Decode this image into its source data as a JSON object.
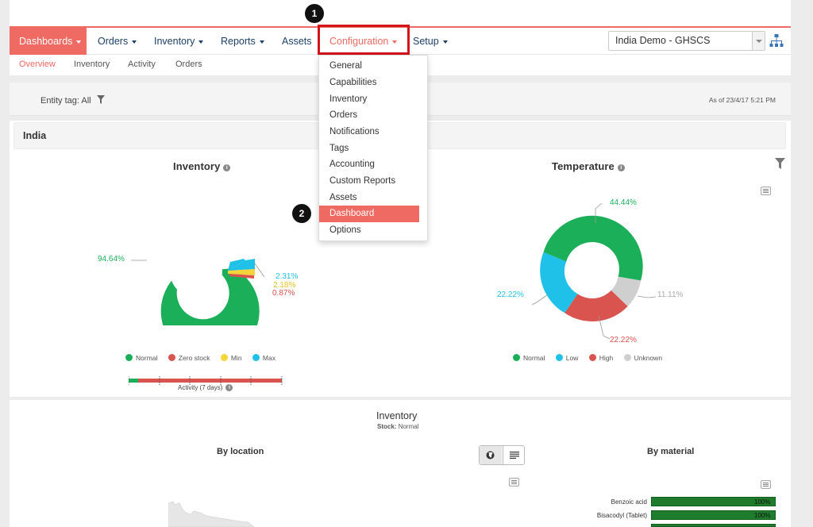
{
  "navbar": {
    "items": [
      {
        "label": "Dashboards"
      },
      {
        "label": "Orders"
      },
      {
        "label": "Inventory"
      },
      {
        "label": "Reports"
      },
      {
        "label": "Assets"
      },
      {
        "label": "Configuration"
      },
      {
        "label": "Setup"
      }
    ],
    "org_select": "India Demo - GHSCS"
  },
  "subnav": {
    "items": [
      "Overview",
      "Inventory",
      "Activity",
      "Orders"
    ]
  },
  "filter": {
    "entity_tag_label": "Entity tag:",
    "entity_tag_value": "All",
    "as_of": "As of 23/4/17 5:21 PM"
  },
  "region": "India",
  "steps": [
    "1",
    "2"
  ],
  "config_menu": {
    "items": [
      "General",
      "Capabilities",
      "Inventory",
      "Orders",
      "Notifications",
      "Tags",
      "Accounting",
      "Custom Reports",
      "Assets",
      "Dashboard",
      "Options"
    ],
    "active": "Dashboard"
  },
  "inventory_chart": {
    "title": "Inventory",
    "labels": {
      "normal": "94.64%",
      "max": "2.31%",
      "min": "2.18%",
      "zero": "0.87%"
    },
    "legend": [
      "Normal",
      "Zero stock",
      "Min",
      "Max"
    ],
    "activity_label": "Activity (7 days)"
  },
  "temperature_chart": {
    "title": "Temperature",
    "labels": {
      "normal": "44.44%",
      "unknown": "11.11%",
      "high": "22.22%",
      "low": "22.22%"
    },
    "legend": [
      "Normal",
      "Low",
      "High",
      "Unknown"
    ]
  },
  "inventory_section": {
    "title": "Inventory",
    "subtitle_label": "Stock:",
    "subtitle_value": "Normal",
    "by_location": "By location",
    "by_material": "By material",
    "materials": [
      {
        "name": "Benzoic acid",
        "value": "100%"
      },
      {
        "name": "Bisacodyl (Tablet)",
        "value": "100%"
      }
    ]
  },
  "colors": {
    "accent": "#ef6a62",
    "normal": "#1caf5a",
    "zero": "#d9534f",
    "min": "#f5d33b",
    "max": "#1fc1e8",
    "unknown": "#cfcfcf",
    "highlight": "#d2141b"
  },
  "chart_data": [
    {
      "type": "pie",
      "title": "Inventory",
      "categories": [
        "Normal",
        "Zero stock",
        "Min",
        "Max"
      ],
      "values": [
        94.64,
        0.87,
        2.18,
        2.31
      ]
    },
    {
      "type": "pie",
      "title": "Temperature",
      "categories": [
        "Normal",
        "Low",
        "High",
        "Unknown"
      ],
      "values": [
        44.44,
        22.22,
        22.22,
        11.11
      ]
    }
  ]
}
